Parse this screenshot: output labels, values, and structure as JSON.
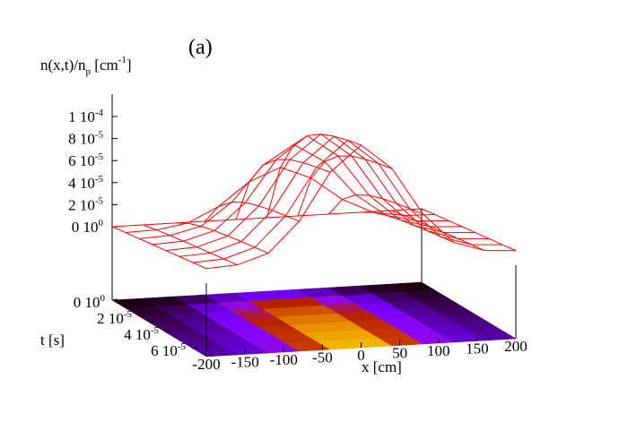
{
  "chart_data": {
    "type": "surface3d",
    "annotation": "(a)",
    "zlabel": {
      "text": "n(x,t)/n",
      "sub": "p",
      "text2": " [cm",
      "sup": "-1",
      "text3": "]"
    },
    "xlabel": "x [cm]",
    "ylabel": "t [s]",
    "color": "#ff0000",
    "x": [
      -200,
      -160,
      -120,
      -80,
      -40,
      0,
      40,
      80,
      120,
      160,
      200
    ],
    "t": [
      0,
      1e-05,
      2e-05,
      3e-05,
      4e-05,
      5e-05,
      6e-05,
      7e-05
    ],
    "z": [
      [
        0,
        0,
        0,
        0,
        0,
        0,
        0,
        0,
        0,
        0,
        0
      ],
      [
        2e-06,
        2.8e-06,
        7.3e-06,
        2.07e-05,
        4.17e-05,
        5.3e-05,
        4.17e-05,
        2.07e-05,
        7.3e-06,
        2.8e-06,
        2e-06
      ],
      [
        3.8e-06,
        5.1e-06,
        1.18e-05,
        3.21e-05,
        6.39e-05,
        8.1e-05,
        6.39e-05,
        3.21e-05,
        1.18e-05,
        5.1e-06,
        3.8e-06
      ],
      [
        5.8e-06,
        7.2e-06,
        1.51e-05,
        3.9e-05,
        7.63e-05,
        9.64e-05,
        7.63e-05,
        3.9e-05,
        1.51e-05,
        7.2e-06,
        5.8e-06
      ],
      [
        7.6e-06,
        9.2e-06,
        1.76e-05,
        4.33e-05,
        8.36e-05,
        0.0001052,
        8.36e-05,
        4.33e-05,
        1.76e-05,
        9.2e-06,
        7.6e-06
      ],
      [
        9.5e-06,
        1.11e-05,
        1.99e-05,
        4.65e-05,
        8.81e-05,
        0.0001105,
        8.81e-05,
        4.65e-05,
        1.99e-05,
        1.11e-05,
        9.5e-06
      ],
      [
        1.13e-05,
        1.3e-05,
        2.19e-05,
        4.9e-05,
        9.14e-05,
        0.0001142,
        9.14e-05,
        4.9e-05,
        2.19e-05,
        1.3e-05,
        1.13e-05
      ],
      [
        1.32e-05,
        1.49e-05,
        2.39e-05,
        5.13e-05,
        9.41e-05,
        0.0001171,
        9.41e-05,
        5.13e-05,
        2.39e-05,
        1.49e-05,
        1.32e-05
      ]
    ],
    "xlim": [
      -200,
      200
    ],
    "xticks": [
      -200,
      -150,
      -100,
      -50,
      0,
      50,
      100,
      150,
      200
    ],
    "tlim": [
      0,
      7e-05
    ],
    "tticks": [
      {
        "value": 0,
        "label": "0 10",
        "sup": "0"
      },
      {
        "value": 2e-05,
        "label": "2 10",
        "sup": "-5"
      },
      {
        "value": 4e-05,
        "label": "4 10",
        "sup": "-5"
      },
      {
        "value": 6e-05,
        "label": "6 10",
        "sup": "-5"
      }
    ],
    "zticks": [
      {
        "value": 0,
        "label": "0 10",
        "sup": "0"
      },
      {
        "value": 2e-05,
        "label": "2 10",
        "sup": "-5"
      },
      {
        "value": 4e-05,
        "label": "4 10",
        "sup": "-5"
      },
      {
        "value": 6e-05,
        "label": "6 10",
        "sup": "-5"
      },
      {
        "value": 8e-05,
        "label": "8 10",
        "sup": "-5"
      },
      {
        "value": 0.0001,
        "label": "1 10",
        "sup": "-4"
      }
    ]
  }
}
